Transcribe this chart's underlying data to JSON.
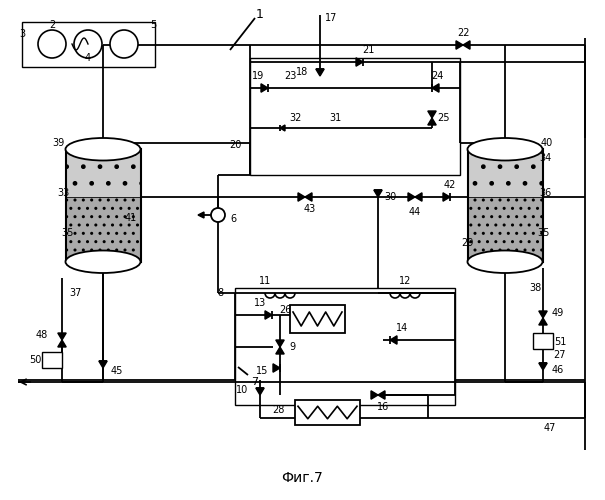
{
  "title": "Фиг.7",
  "bg_color": "#ffffff",
  "fig_width": 6.05,
  "fig_height": 5.0,
  "dpi": 100
}
